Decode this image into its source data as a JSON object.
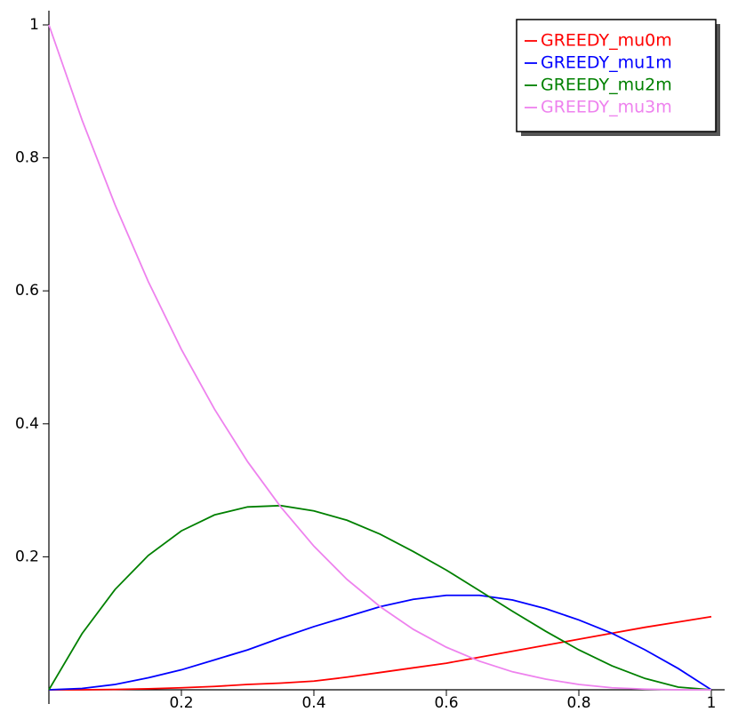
{
  "chart_data": {
    "type": "line",
    "x": [
      0,
      0.05,
      0.1,
      0.15,
      0.2,
      0.25,
      0.3,
      0.35,
      0.4,
      0.45,
      0.5,
      0.55,
      0.6,
      0.65,
      0.7,
      0.75,
      0.8,
      0.85,
      0.9,
      0.95,
      1
    ],
    "series": [
      {
        "name": "GREEDY_mu0m",
        "color": "#ff0000",
        "values": [
          0,
          0,
          0.0005,
          0.0015,
          0.003,
          0.005,
          0.008,
          0.01,
          0.013,
          0.019,
          0.026,
          0.033,
          0.04,
          0.049,
          0.058,
          0.067,
          0.076,
          0.085,
          0.094,
          0.102,
          0.11
        ]
      },
      {
        "name": "GREEDY_mu1m",
        "color": "#0000ff",
        "values": [
          0,
          0.002,
          0.008,
          0.018,
          0.03,
          0.045,
          0.06,
          0.078,
          0.095,
          0.11,
          0.125,
          0.136,
          0.142,
          0.142,
          0.135,
          0.122,
          0.105,
          0.085,
          0.06,
          0.032,
          0
        ]
      },
      {
        "name": "GREEDY_mu2m",
        "color": "#008000",
        "values": [
          0,
          0.0844,
          0.151,
          0.202,
          0.239,
          0.263,
          0.275,
          0.277,
          0.269,
          0.255,
          0.234,
          0.208,
          0.18,
          0.149,
          0.118,
          0.088,
          0.06,
          0.036,
          0.017,
          0.004,
          0
        ]
      },
      {
        "name": "GREEDY_mu3m",
        "color": "#ee82ee",
        "values": [
          1,
          0.857,
          0.729,
          0.614,
          0.512,
          0.422,
          0.343,
          0.275,
          0.216,
          0.166,
          0.125,
          0.091,
          0.064,
          0.043,
          0.027,
          0.016,
          0.008,
          0.003,
          0.001,
          0,
          0
        ]
      }
    ],
    "xlim": [
      0,
      1
    ],
    "ylim": [
      0,
      1
    ],
    "xticks": [
      0.2,
      0.4,
      0.6,
      0.8,
      1
    ],
    "yticks": [
      0.2,
      0.4,
      0.6,
      0.8,
      1
    ],
    "legend": "upper right"
  }
}
